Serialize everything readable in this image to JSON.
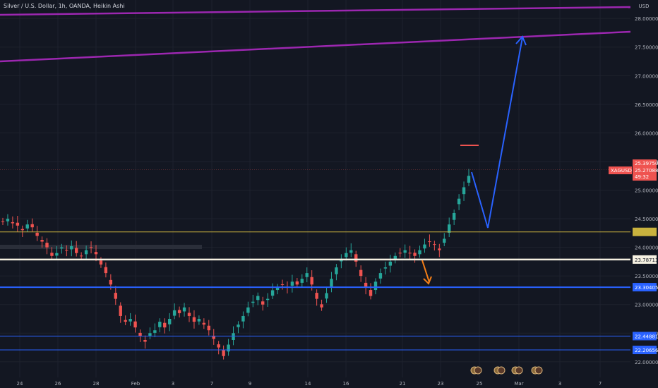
{
  "window": {
    "title": "Silver / U.S. Dollar, 1h, OANDA, Heikin Ashi"
  },
  "chart_data": {
    "type": "candlestick",
    "title": "Silver / U.S. Dollar, 1h, OANDA, Heikin Ashi",
    "symbol": "XAGUSD",
    "currency": "USD",
    "grid": true,
    "price_axis": {
      "position": "right",
      "ylim": [
        21.85,
        28.15
      ],
      "ticks": [
        {
          "value": 28.0,
          "label": "28.00000"
        },
        {
          "value": 27.5,
          "label": "27.50000"
        },
        {
          "value": 27.0,
          "label": "27.00000"
        },
        {
          "value": 26.5,
          "label": "26.50000"
        },
        {
          "value": 26.0,
          "label": "26.00000"
        },
        {
          "value": 25.5,
          "label": "25.50000"
        },
        {
          "value": 25.0,
          "label": "25.00000"
        },
        {
          "value": 24.5,
          "label": "24.50000"
        },
        {
          "value": 24.0,
          "label": "24.00000"
        },
        {
          "value": 23.5,
          "label": "23.50000"
        },
        {
          "value": 23.0,
          "label": "23.00000"
        },
        {
          "value": 22.5,
          "label": "22.50000"
        },
        {
          "value": 22.0,
          "label": "22.00000"
        }
      ]
    },
    "time_axis": {
      "ticks": [
        "24",
        "26",
        "28",
        "Feb",
        "3",
        "7",
        "9",
        "14",
        "16",
        "21",
        "23",
        "25",
        "Mar",
        "3",
        "7"
      ]
    },
    "candles_close": [
      24.45,
      24.5,
      24.42,
      24.38,
      24.3,
      24.4,
      24.35,
      24.2,
      24.1,
      24.0,
      23.85,
      23.9,
      24.0,
      23.95,
      24.02,
      23.9,
      23.85,
      23.95,
      24.0,
      23.88,
      23.7,
      23.55,
      23.35,
      23.1,
      22.8,
      22.7,
      22.75,
      22.6,
      22.45,
      22.35,
      22.5,
      22.55,
      22.7,
      22.6,
      22.75,
      22.9,
      22.85,
      22.95,
      22.8,
      22.7,
      22.75,
      22.65,
      22.55,
      22.4,
      22.25,
      22.1,
      22.3,
      22.5,
      22.65,
      22.8,
      22.95,
      23.05,
      23.15,
      23.0,
      23.1,
      23.25,
      23.3,
      23.35,
      23.3,
      23.4,
      23.35,
      23.45,
      23.55,
      23.35,
      23.1,
      22.95,
      23.2,
      23.45,
      23.65,
      23.8,
      23.9,
      23.95,
      23.75,
      23.5,
      23.3,
      23.15,
      23.4,
      23.55,
      23.65,
      23.75,
      23.85,
      23.9,
      23.95,
      23.9,
      23.85,
      23.95,
      24.05,
      24.1,
      24.05,
      23.95,
      24.15,
      24.4,
      24.6,
      24.85,
      25.05,
      25.25
    ],
    "current_price": {
      "label": "XAGUSD",
      "value": "25.39750",
      "value2": "25.27088",
      "countdown": "49:32",
      "y": 25.36
    },
    "horizontal_lines": [
      {
        "value": 24.27,
        "color": "#c9b23e",
        "label": "24.27000",
        "label_visible": false
      },
      {
        "value": 23.787,
        "color": "#f5f0e1",
        "label": "23.78713"
      },
      {
        "value": 23.304,
        "color": "#2962ff",
        "label": "23.30405"
      },
      {
        "value": 22.449,
        "color": "#2962ff",
        "label": "22.44881"
      },
      {
        "value": 22.207,
        "color": "#2962ff",
        "label": "22.20656"
      }
    ],
    "channel_lines": {
      "color": "#9c27b0"
    },
    "annotations": {
      "projection_arrow_color": "#2962ff",
      "down_arrow_color": "#f57f17",
      "target_mark_color": "#ef5350"
    },
    "colors": {
      "up": "#26a69a",
      "down": "#ef5350",
      "background": "#131722"
    }
  }
}
